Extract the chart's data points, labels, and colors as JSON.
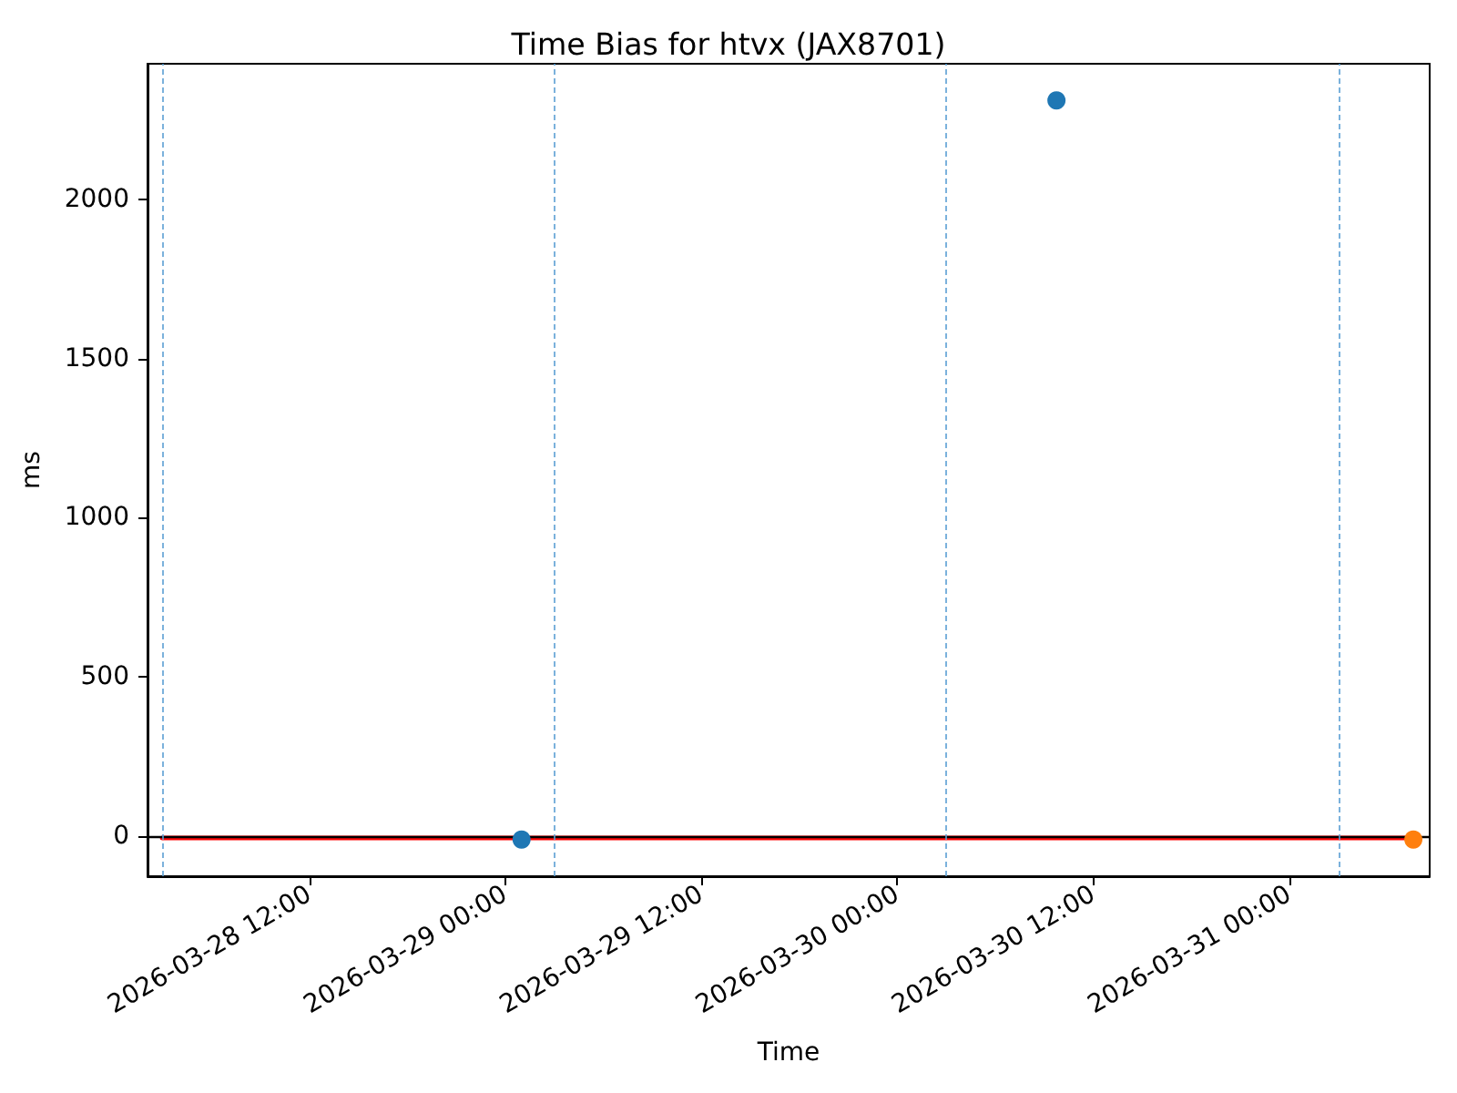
{
  "chart_data": {
    "type": "scatter",
    "title": "Time Bias for htvx (JAX8701)",
    "xlabel": "Time",
    "ylabel": "ms",
    "series": [
      {
        "type": "line",
        "marker": "none",
        "color": "#ff0000",
        "x": [
          "2026-03-28T03:00",
          "2026-03-31T07:36"
        ],
        "values": [
          -5,
          -5
        ]
      },
      {
        "color": "#1f77b4",
        "x": [
          "2026-03-29T01:00",
          "2026-03-30T09:45"
        ],
        "values": [
          -10,
          2310
        ]
      },
      {
        "color": "#ff7f0e",
        "x": [
          "2026-03-31T07:36"
        ],
        "values": [
          -10
        ]
      }
    ],
    "xlim": [
      "2026-03-28T02:06",
      "2026-03-31T08:36"
    ],
    "xticks": [
      {
        "value": "2026-03-28T12:00",
        "label": "2026-03-28 12:00"
      },
      {
        "value": "2026-03-29T00:00",
        "label": "2026-03-29 00:00"
      },
      {
        "value": "2026-03-29T12:00",
        "label": "2026-03-29 12:00"
      },
      {
        "value": "2026-03-30T00:00",
        "label": "2026-03-30 00:00"
      },
      {
        "value": "2026-03-30T12:00",
        "label": "2026-03-30 12:00"
      },
      {
        "value": "2026-03-31T00:00",
        "label": "2026-03-31 00:00"
      }
    ],
    "ylim": [
      -125,
      2425
    ],
    "yticks": [
      0,
      500,
      1000,
      1500,
      2000
    ],
    "ref_lines": [
      {
        "axis": "y",
        "value": 0,
        "color": "#000000"
      },
      {
        "axis": "x",
        "value": "2026-03-28T03:00",
        "color": "#5b9fd4",
        "line_style": "dashed"
      },
      {
        "axis": "x",
        "value": "2026-03-29T03:00",
        "color": "#5b9fd4",
        "line_style": "dashed"
      },
      {
        "axis": "x",
        "value": "2026-03-30T03:00",
        "color": "#5b9fd4",
        "line_style": "dashed"
      },
      {
        "axis": "x",
        "value": "2026-03-31T03:00",
        "color": "#5b9fd4",
        "line_style": "dashed"
      }
    ],
    "grid": false,
    "marker": "circle"
  }
}
